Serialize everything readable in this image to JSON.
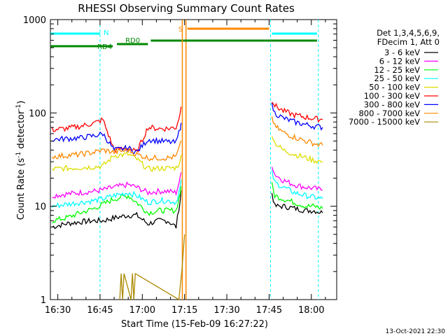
{
  "chart_data": {
    "type": "line",
    "title": "RHESSI Observing Summary Count Rates",
    "xlabel": "Start Time (15-Feb-09 16:27:22)",
    "ylabel": "Count Rate (s⁻¹ detector⁻¹)",
    "ylabel_main": "Count Rate (s",
    "ylabel_sup1": "-1",
    "ylabel_mid": " detector",
    "ylabel_sup2": "-1",
    "ylabel_end": ")",
    "ylog": true,
    "ylim": [
      1,
      1000
    ],
    "xlim": [
      "16:27:22",
      "18:09"
    ],
    "x_ticks": [
      "16:30",
      "16:45",
      "17:00",
      "17:15",
      "17:30",
      "17:45",
      "18:00"
    ],
    "y_ticks": [
      "1",
      "10",
      "100",
      "1000"
    ],
    "x_tick_minutes": [
      30,
      45,
      60,
      75,
      90,
      105,
      120
    ],
    "y_tick_values": [
      1,
      10,
      100,
      1000
    ],
    "grid": false,
    "legend_position": "right",
    "legend_header": [
      "Det 1,3,4,5,6,9,",
      "FDecim 1, Att 0"
    ],
    "series": [
      {
        "name": "3 - 6 keV",
        "color": "#000000",
        "x": [
          28,
          33,
          38,
          43,
          46,
          50,
          55,
          58,
          62,
          66,
          69,
          72,
          73.5,
          74,
          106,
          107,
          110,
          114,
          118,
          121,
          124
        ],
        "y": [
          6,
          6.5,
          6.8,
          7,
          7,
          7.5,
          8,
          8,
          6.5,
          7,
          7,
          6,
          12,
          18,
          14,
          10,
          10,
          9.5,
          9,
          9,
          8.5
        ]
      },
      {
        "name": "6 - 12 keV",
        "color": "#ff00ff",
        "x": [
          28,
          33,
          38,
          43,
          46,
          50,
          55,
          58,
          62,
          66,
          69,
          72,
          73.5,
          74,
          106,
          107,
          110,
          114,
          118,
          121,
          124
        ],
        "y": [
          13,
          13.5,
          14,
          14.5,
          15,
          16,
          17,
          16,
          14,
          14.5,
          14.5,
          14,
          20,
          26,
          28,
          22,
          19,
          17,
          16,
          15.5,
          15
        ]
      },
      {
        "name": "12 - 25 keV",
        "color": "#00ff00",
        "x": [
          28,
          33,
          38,
          43,
          46,
          50,
          55,
          58,
          62,
          66,
          69,
          72,
          73.5,
          74,
          106,
          107,
          110,
          114,
          118,
          121,
          124
        ],
        "y": [
          7,
          7.5,
          8.5,
          9.5,
          10.5,
          12,
          13,
          11,
          8.5,
          9,
          9,
          9,
          14,
          20,
          17,
          13,
          12,
          11,
          10,
          10,
          9.5
        ]
      },
      {
        "name": "25 - 50 keV",
        "color": "#00ffff",
        "x": [
          28,
          33,
          38,
          43,
          46,
          50,
          55,
          58,
          62,
          66,
          69,
          72,
          73.5,
          74,
          106,
          107,
          110,
          114,
          118,
          121,
          124
        ],
        "y": [
          10,
          10.5,
          11,
          11.5,
          12,
          13,
          14,
          13,
          11,
          11.5,
          11.5,
          11,
          16,
          22,
          23,
          18,
          16,
          14,
          13,
          12.5,
          12
        ]
      },
      {
        "name": "50 - 100 keV",
        "color": "#dddd00",
        "x": [
          28,
          33,
          38,
          43,
          46,
          50,
          55,
          58,
          62,
          66,
          69,
          72,
          73.5,
          74,
          106,
          107,
          110,
          114,
          118,
          121,
          124
        ],
        "y": [
          25,
          25.5,
          26,
          26.5,
          27,
          35,
          36,
          32,
          25,
          25.5,
          25.5,
          26,
          30,
          40,
          60,
          48,
          40,
          36,
          33,
          31,
          30
        ]
      },
      {
        "name": "100 - 300 keV",
        "color": "#ff0000",
        "x": [
          28,
          33,
          38,
          43,
          46,
          50,
          55,
          58,
          62,
          66,
          69,
          72,
          73.5,
          74,
          106,
          107,
          110,
          114,
          118,
          121,
          124
        ],
        "y": [
          66,
          68,
          72,
          78,
          85,
          40,
          42,
          38,
          70,
          68,
          68,
          70,
          100,
          150,
          140,
          120,
          105,
          95,
          90,
          87,
          85
        ]
      },
      {
        "name": "300 - 800 keV",
        "color": "#0000ff",
        "x": [
          28,
          33,
          38,
          43,
          46,
          50,
          55,
          58,
          62,
          66,
          69,
          72,
          73.5,
          74,
          106,
          107,
          110,
          114,
          118,
          121,
          124
        ],
        "y": [
          52,
          53,
          54,
          57,
          60,
          40,
          42,
          38,
          52,
          50,
          49,
          48,
          70,
          100,
          120,
          100,
          88,
          80,
          75,
          72,
          70
        ]
      },
      {
        "name": "800 - 7000 keV",
        "color": "#ff8800",
        "x": [
          28,
          33,
          38,
          43,
          46,
          50,
          55,
          58,
          62,
          66,
          69,
          72,
          73.5,
          74,
          106,
          107,
          110,
          114,
          118,
          121,
          124
        ],
        "y": [
          34,
          35,
          36,
          38,
          40,
          38,
          40,
          36,
          33,
          33,
          33,
          34,
          45,
          60,
          90,
          72,
          62,
          55,
          50,
          47,
          45
        ]
      },
      {
        "name": "7000 - 15000 keV",
        "color": "#aa8800",
        "x": [
          52,
          52.5,
          53,
          53.5,
          56,
          56.5,
          57,
          57.5,
          73,
          74,
          75
        ],
        "y": [
          1,
          1.9,
          1,
          1.9,
          1,
          1.9,
          1,
          1.9,
          1,
          2,
          5
        ]
      }
    ],
    "flag_bars": [
      {
        "label": "N",
        "color": "#00ffff",
        "segments": [
          [
            27.4,
            45
          ],
          [
            106,
            122
          ]
        ]
      },
      {
        "label": "RD0",
        "color": "#008800",
        "segments": [
          [
            51,
            62
          ]
        ]
      },
      {
        "label": "RD4",
        "color": "#008800",
        "segments": [
          [
            27.4,
            49.5
          ]
        ]
      },
      {
        "label": "",
        "color": "#008800",
        "segments": [
          [
            63,
            122
          ]
        ]
      },
      {
        "label": "S",
        "color": "#ff8800",
        "segments": [
          [
            76,
            105
          ]
        ]
      }
    ],
    "markers": [
      {
        "x": 45,
        "color": "#00ffff"
      },
      {
        "x": 105.5,
        "color": "#00ffff"
      },
      {
        "x": 122.5,
        "color": "#00ffff"
      },
      {
        "x": 75.5,
        "color": "#ff8800"
      }
    ],
    "stamp": "13-Oct-2021 22:30"
  }
}
